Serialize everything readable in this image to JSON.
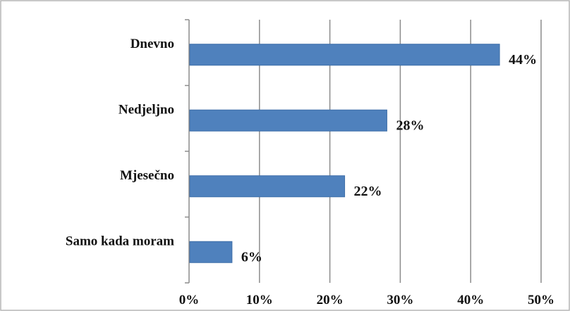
{
  "chart_data": {
    "type": "bar",
    "orientation": "horizontal",
    "categories": [
      "Dnevno",
      "Nedjeljno",
      "Mjesečno",
      "Samo kada moram"
    ],
    "values": [
      44,
      28,
      22,
      6
    ],
    "data_labels": [
      "44%",
      "28%",
      "22%",
      "6%"
    ],
    "xlim": [
      0,
      50
    ],
    "xticks": [
      0,
      10,
      20,
      30,
      40,
      50
    ],
    "xtick_labels": [
      "0%",
      "10%",
      "20%",
      "30%",
      "40%",
      "50%"
    ],
    "title": "",
    "xlabel": "",
    "ylabel": "",
    "grid": "vertical",
    "legend": "none",
    "colors": {
      "bar": "#4f81bd",
      "bar_edge": "#3f6fa8",
      "grid": "#8c8c8c",
      "frame": "#b5b5b5",
      "text": "#111111"
    }
  }
}
